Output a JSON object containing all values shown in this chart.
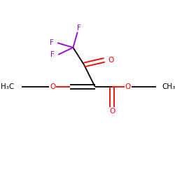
{
  "background_color": "#ffffff",
  "atom_colors": {
    "C": "#000000",
    "O": "#ff0000",
    "F": "#9900cc"
  },
  "lw": 1.3,
  "fs": 7.5
}
